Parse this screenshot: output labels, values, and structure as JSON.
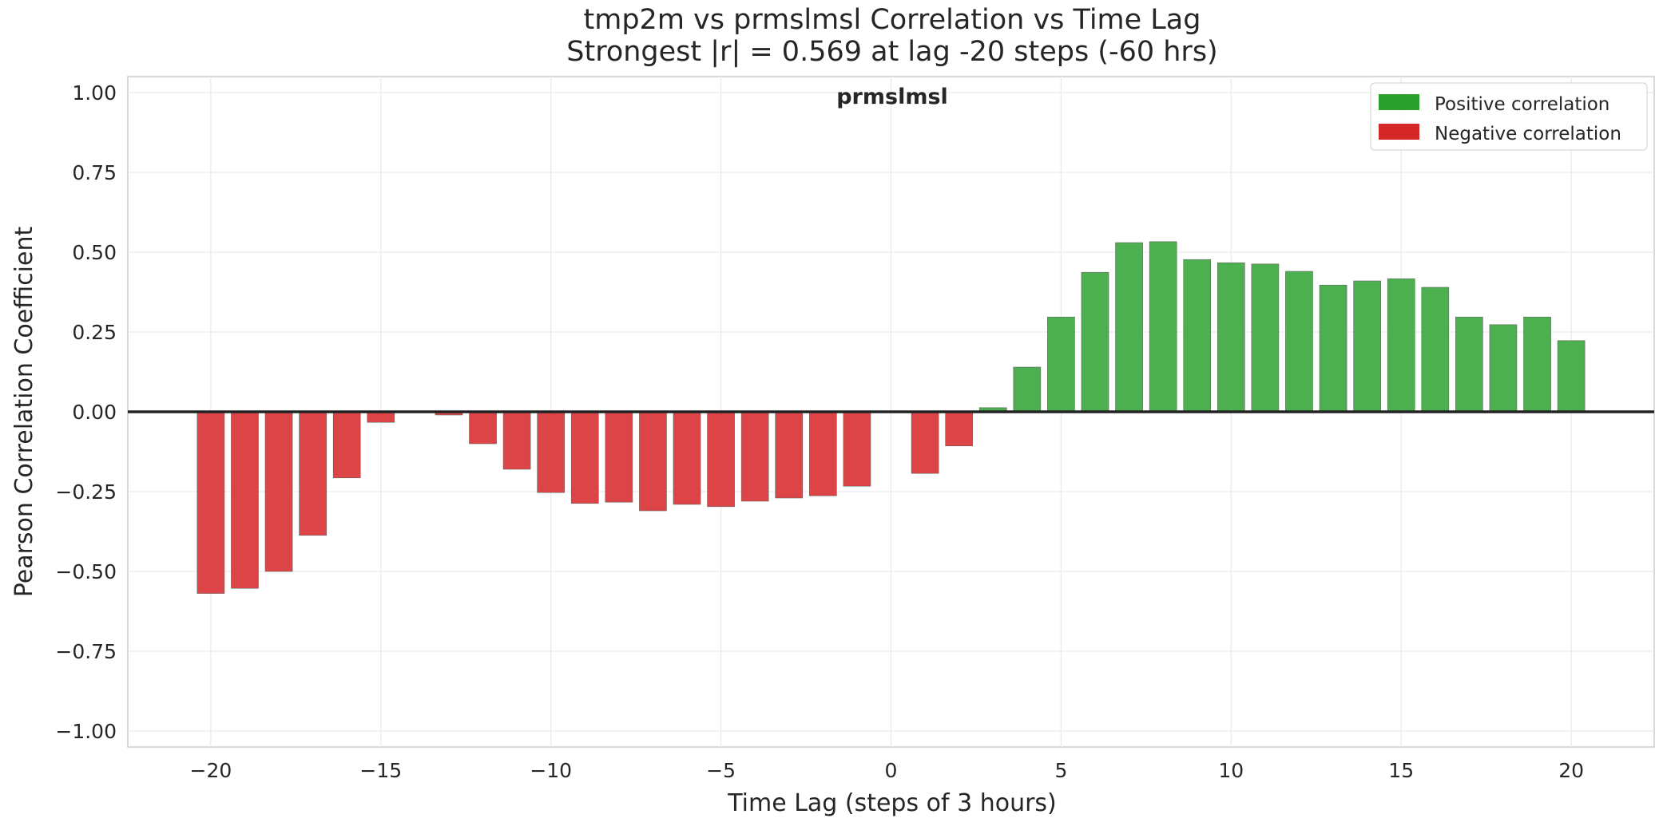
{
  "chart_data": {
    "type": "bar",
    "title": "tmp2m vs prmslmsl Correlation vs Time Lag",
    "subtitle": "Strongest |r| = 0.569 at lag -20 steps (-60 hrs)",
    "annotation": "prmslmsl",
    "xlabel": "Time Lag (steps of 3 hours)",
    "ylabel": "Pearson Correlation Coefficient",
    "xlim": [
      -22.44,
      22.44
    ],
    "ylim": [
      -1.05,
      1.05
    ],
    "xticks": [
      -20,
      -15,
      -10,
      -5,
      0,
      5,
      10,
      15,
      20
    ],
    "xtick_labels": [
      "−20",
      "−15",
      "−10",
      "−5",
      "0",
      "5",
      "10",
      "15",
      "20"
    ],
    "yticks": [
      1.0,
      0.75,
      0.5,
      0.25,
      0.0,
      -0.25,
      -0.5,
      -0.75,
      -1.0
    ],
    "ytick_labels": [
      "1.00",
      "0.75",
      "0.50",
      "0.25",
      "0.00",
      "−0.25",
      "−0.50",
      "−0.75",
      "−1.00"
    ],
    "grid": true,
    "legend_position": "top-right",
    "legend": [
      {
        "label": "Positive correlation",
        "color": "#2ca02c"
      },
      {
        "label": "Negative correlation",
        "color": "#d62728"
      }
    ],
    "colors": {
      "positive": "#4caf50",
      "negative": "#dc4447",
      "zero_line": "#222222"
    },
    "x": [
      -20,
      -19,
      -18,
      -17,
      -16,
      -15,
      -14,
      -13,
      -12,
      -11,
      -10,
      -9,
      -8,
      -7,
      -6,
      -5,
      -4,
      -3,
      -2,
      -1,
      0,
      1,
      2,
      3,
      4,
      5,
      6,
      7,
      8,
      9,
      10,
      11,
      12,
      13,
      14,
      15,
      16,
      17,
      18,
      19,
      20
    ],
    "values": [
      -0.569,
      -0.553,
      -0.5,
      -0.387,
      -0.207,
      -0.033,
      -0.003,
      -0.01,
      -0.1,
      -0.18,
      -0.253,
      -0.287,
      -0.283,
      -0.31,
      -0.29,
      -0.297,
      -0.28,
      -0.27,
      -0.263,
      -0.233,
      0.0,
      -0.193,
      -0.107,
      0.013,
      0.14,
      0.297,
      0.437,
      0.53,
      0.533,
      0.477,
      0.467,
      0.463,
      0.44,
      0.397,
      0.41,
      0.417,
      0.39,
      0.297,
      0.273,
      0.297,
      0.223
    ]
  }
}
